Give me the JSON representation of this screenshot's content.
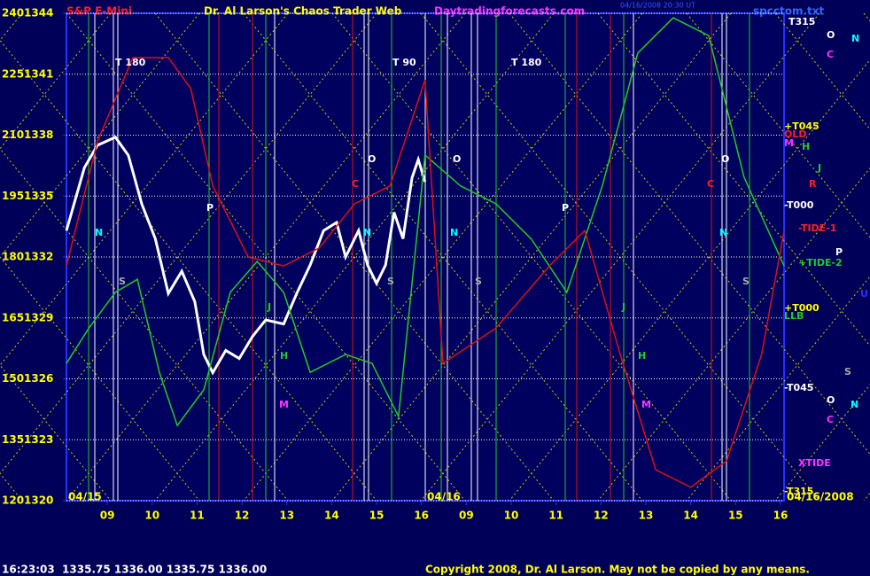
{
  "chart_data": {
    "type": "line",
    "title": "Dr. Al Larson's Chaos Trader Web",
    "instrument": "S&P E-Mini",
    "site": "Daytradingforecasts.com",
    "file": "spcctom.txt",
    "timestamp": "04/16/2008 20:30 UT",
    "quote": "16:23:03  1335.75 1336.00 1335.75 1336.00",
    "copyright": "Copyright 2008, Dr. Al Larson. May not be copied by any means.",
    "dates": [
      "04/15",
      "04/16",
      "04/16/2008"
    ],
    "xlim": [
      0.09,
      16.08
    ],
    "xticks": [
      {
        "value": 1,
        "label": "09"
      },
      {
        "value": 2,
        "label": "10"
      },
      {
        "value": 3,
        "label": "11"
      },
      {
        "value": 4,
        "label": "12"
      },
      {
        "value": 5,
        "label": "13"
      },
      {
        "value": 6,
        "label": "14"
      },
      {
        "value": 7,
        "label": "15"
      },
      {
        "value": 8,
        "label": "16"
      },
      {
        "value": 9,
        "label": "09"
      },
      {
        "value": 10,
        "label": "10"
      },
      {
        "value": 11,
        "label": "11"
      },
      {
        "value": 12,
        "label": "12"
      },
      {
        "value": 13,
        "label": "13"
      },
      {
        "value": 14,
        "label": "14"
      },
      {
        "value": 15,
        "label": "15"
      },
      {
        "value": 16,
        "label": "16"
      }
    ],
    "ylim": [
      120,
      240
    ],
    "yticks": [
      120,
      135,
      150,
      165,
      180,
      195,
      210,
      225,
      240
    ],
    "y2lim": [
      1320,
      1344
    ],
    "y2ticks": [
      1320,
      1323,
      1326,
      1329,
      1332,
      1335,
      1338,
      1341,
      1344
    ],
    "grid": true,
    "series": [
      {
        "color": "#ffffff",
        "axis": "y2",
        "x": [
          0.09,
          0.49,
          0.78,
          1.18,
          1.47,
          1.77,
          2.07,
          2.36,
          2.66,
          2.95,
          3.15,
          3.35,
          3.64,
          3.94,
          4.24,
          4.53,
          4.93,
          5.22,
          5.52,
          5.82,
          6.11,
          6.31,
          6.6,
          6.8,
          7.0,
          7.2,
          7.39,
          7.59,
          7.79,
          7.93,
          8.08
        ],
        "values": [
          1333.3,
          1336.4,
          1337.5,
          1337.9,
          1337.0,
          1334.6,
          1332.9,
          1330.2,
          1331.3,
          1329.8,
          1327.2,
          1326.3,
          1327.4,
          1327.0,
          1328.1,
          1328.9,
          1328.7,
          1330.2,
          1331.6,
          1333.3,
          1333.7,
          1332.0,
          1333.3,
          1331.6,
          1330.7,
          1331.6,
          1334.2,
          1332.9,
          1335.9,
          1336.8,
          1335.7
        ]
      },
      {
        "color": "#22cc22",
        "x": [
          0.09,
          0.59,
          1.18,
          1.67,
          2.16,
          2.56,
          3.15,
          3.74,
          4.34,
          4.93,
          5.52,
          6.31,
          6.9,
          7.49,
          8.08,
          8.87,
          9.66,
          10.45,
          11.24,
          12.03,
          12.82,
          13.61,
          14.4,
          15.19,
          16.08
        ],
        "values": [
          153.8,
          162.5,
          171.3,
          174.5,
          151.6,
          138.5,
          147.3,
          171.3,
          178.9,
          171.3,
          151.6,
          156.0,
          153.8,
          140.7,
          205.1,
          197.5,
          193.1,
          184.4,
          171.3,
          197.5,
          230.2,
          238.9,
          234.5,
          199.6,
          177.8
        ]
      },
      {
        "color": "#dd1111",
        "x": [
          0.09,
          0.78,
          1.57,
          2.36,
          2.86,
          3.35,
          4.14,
          4.93,
          5.72,
          6.51,
          7.3,
          8.08,
          8.48,
          9.66,
          10.85,
          11.64,
          12.43,
          13.22,
          14.0,
          14.8,
          15.58,
          16.08
        ],
        "values": [
          177.8,
          208.4,
          229.1,
          229.1,
          221.5,
          197.5,
          180.0,
          177.8,
          182.2,
          193.1,
          197.5,
          223.6,
          153.8,
          162.5,
          177.8,
          186.5,
          156.0,
          127.6,
          123.3,
          129.8,
          156.0,
          186.5
        ]
      }
    ],
    "annotations": [
      "T 180",
      "T 90",
      "T 180",
      "T315",
      "O",
      "N",
      "C",
      "+T045",
      "OLD",
      "M",
      "H",
      "J",
      "R",
      "-T000",
      "-TIDE-1",
      "P",
      "+TIDE-2",
      "U",
      "+T000",
      "LLB",
      "S",
      "-T045",
      "O",
      "N",
      "C",
      "XTIDE",
      "-T315",
      "N",
      "S",
      "P",
      "J",
      "H",
      "M",
      "O",
      "C",
      "N",
      "S",
      "O",
      "N",
      "S",
      "P",
      "J",
      "H",
      "M",
      "O",
      "C",
      "N",
      "S"
    ]
  }
}
